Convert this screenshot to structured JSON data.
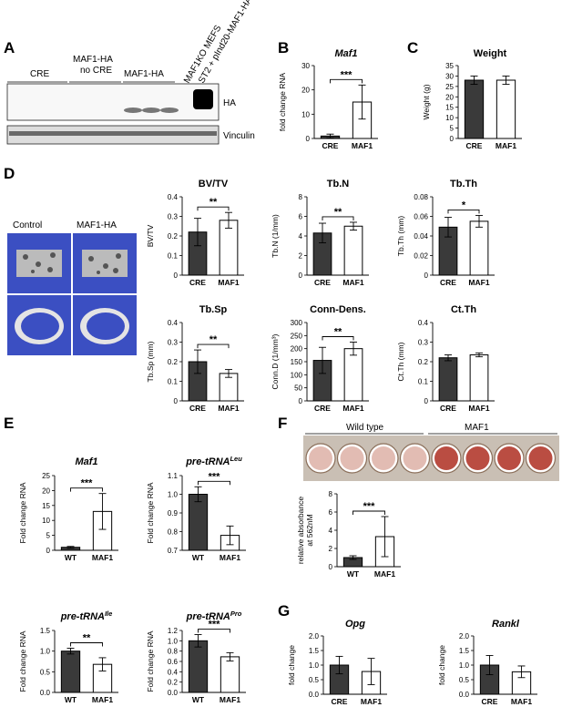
{
  "panels": {
    "A": {
      "letter": "A",
      "groups": [
        "CRE",
        "MAF1-HA\nno CRE",
        "MAF1-HA"
      ],
      "extra_lanes": [
        "MAF1KO MEFS",
        "ST2 + pInd20-MAF1-HA"
      ],
      "bands": [
        "HA",
        "Vinculin"
      ]
    },
    "B": {
      "letter": "B"
    },
    "C": {
      "letter": "C"
    },
    "D": {
      "letter": "D",
      "image_labels": [
        "Control",
        "MAF1-HA"
      ]
    },
    "E": {
      "letter": "E"
    },
    "F": {
      "letter": "F",
      "plate_groups": [
        "Wild type",
        "MAF1"
      ]
    },
    "G": {
      "letter": "G"
    }
  },
  "chart_data": [
    {
      "id": "B",
      "type": "bar",
      "title": "Maf1",
      "title_italic": true,
      "ylabel": "fold change RNA",
      "categories": [
        "CRE",
        "MAF1"
      ],
      "values": [
        1,
        15
      ],
      "errors": [
        0.8,
        7
      ],
      "ylim": [
        0,
        30
      ],
      "yticks": [
        0,
        10,
        20,
        30
      ],
      "significance": "***",
      "dark_first": true
    },
    {
      "id": "C",
      "type": "bar",
      "title": "Weight",
      "ylabel": "Weight (g)",
      "categories": [
        "CRE",
        "MAF1"
      ],
      "values": [
        28,
        28
      ],
      "errors": [
        2,
        2
      ],
      "ylim": [
        0,
        35
      ],
      "yticks": [
        0,
        5,
        10,
        15,
        20,
        25,
        30,
        35
      ],
      "significance": "",
      "dark_first": true
    },
    {
      "id": "BVTV",
      "type": "bar",
      "title": "BV/TV",
      "ylabel": "BV/TV",
      "categories": [
        "CRE",
        "MAF1"
      ],
      "values": [
        0.22,
        0.28
      ],
      "errors": [
        0.07,
        0.04
      ],
      "ylim": [
        0,
        0.4
      ],
      "yticks": [
        0,
        0.1,
        0.2,
        0.3,
        0.4
      ],
      "ytick_labels": [
        "0",
        "0.1",
        "0.2",
        "0.3",
        "0.4"
      ],
      "significance": "**",
      "dark_first": true
    },
    {
      "id": "TbN",
      "type": "bar",
      "title": "Tb.N",
      "ylabel": "Tb.N (1/mm)",
      "categories": [
        "CRE",
        "MAF1"
      ],
      "values": [
        4.3,
        5.0
      ],
      "errors": [
        1.0,
        0.4
      ],
      "ylim": [
        0,
        8
      ],
      "yticks": [
        0,
        2,
        4,
        6,
        8
      ],
      "significance": "**",
      "dark_first": true
    },
    {
      "id": "TbTh",
      "type": "bar",
      "title": "Tb.Th",
      "ylabel": "Tb.Th (mm)",
      "categories": [
        "CRE",
        "MAF1"
      ],
      "values": [
        0.049,
        0.055
      ],
      "errors": [
        0.01,
        0.006
      ],
      "ylim": [
        0,
        0.08
      ],
      "yticks": [
        0,
        0.02,
        0.04,
        0.06,
        0.08
      ],
      "ytick_labels": [
        "0",
        "0.02",
        "0.04",
        "0.06",
        "0.08"
      ],
      "significance": "*",
      "dark_first": true
    },
    {
      "id": "TbSp",
      "type": "bar",
      "title": "Tb.Sp",
      "ylabel": "Tb.Sp (mm)",
      "categories": [
        "CRE",
        "MAF1"
      ],
      "values": [
        0.2,
        0.14
      ],
      "errors": [
        0.06,
        0.02
      ],
      "ylim": [
        0,
        0.4
      ],
      "yticks": [
        0,
        0.1,
        0.2,
        0.3,
        0.4
      ],
      "ytick_labels": [
        "0",
        "0.1",
        "0.2",
        "0.3",
        "0.4"
      ],
      "significance": "**",
      "dark_first": true
    },
    {
      "id": "ConnD",
      "type": "bar",
      "title": "Conn-Dens.",
      "ylabel": "Conn.D (1/mm³)",
      "categories": [
        "CRE",
        "MAF1"
      ],
      "values": [
        155,
        200
      ],
      "errors": [
        50,
        25
      ],
      "ylim": [
        0,
        300
      ],
      "yticks": [
        0,
        50,
        100,
        150,
        200,
        250,
        300
      ],
      "significance": "**",
      "dark_first": true
    },
    {
      "id": "CtTh",
      "type": "bar",
      "title": "Ct.Th",
      "ylabel": "Ct.Th (mm)",
      "categories": [
        "CRE",
        "MAF1"
      ],
      "values": [
        0.22,
        0.235
      ],
      "errors": [
        0.015,
        0.01
      ],
      "ylim": [
        0,
        0.4
      ],
      "yticks": [
        0,
        0.1,
        0.2,
        0.3,
        0.4
      ],
      "ytick_labels": [
        "0",
        "0.1",
        "0.2",
        "0.3",
        "0.4"
      ],
      "significance": "",
      "dark_first": true
    },
    {
      "id": "E1",
      "type": "bar",
      "title": "Maf1",
      "title_italic": true,
      "ylabel": "Fold change RNA",
      "categories": [
        "WT",
        "MAF1"
      ],
      "values": [
        1,
        13
      ],
      "errors": [
        0.3,
        6
      ],
      "ylim": [
        0,
        25
      ],
      "yticks": [
        0,
        5,
        10,
        15,
        20,
        25
      ],
      "significance": "***",
      "dark_first": true
    },
    {
      "id": "E2",
      "type": "bar",
      "title": "pre-tRNA",
      "title_sup": "Leu",
      "title_italic": true,
      "ylabel": "Fold change RNA",
      "categories": [
        "WT",
        "MAF1"
      ],
      "values": [
        1.0,
        0.78
      ],
      "errors": [
        0.04,
        0.05
      ],
      "ylim": [
        0.7,
        1.1
      ],
      "yticks": [
        0.7,
        0.8,
        0.9,
        1.0,
        1.1
      ],
      "ytick_labels": [
        "0.7",
        "0.8",
        "0.9",
        "1.0",
        "1.1"
      ],
      "significance": "***",
      "dark_first": true
    },
    {
      "id": "E3",
      "type": "bar",
      "title": "pre-tRNA",
      "title_sup": "Ile",
      "title_italic": true,
      "ylabel": "Fold change RNA",
      "categories": [
        "WT",
        "MAF1"
      ],
      "values": [
        1.0,
        0.68
      ],
      "errors": [
        0.07,
        0.16
      ],
      "ylim": [
        0,
        1.5
      ],
      "yticks": [
        0,
        0.5,
        1.0,
        1.5
      ],
      "ytick_labels": [
        "0.0",
        "0.5",
        "1.0",
        "1.5"
      ],
      "significance": "**",
      "dark_first": true
    },
    {
      "id": "E4",
      "type": "bar",
      "title": "pre-tRNA",
      "title_sup": "Pro",
      "title_italic": true,
      "ylabel": "Fold change RNA",
      "categories": [
        "WT",
        "MAF1"
      ],
      "values": [
        1.0,
        0.69
      ],
      "errors": [
        0.12,
        0.08
      ],
      "ylim": [
        0,
        1.2
      ],
      "yticks": [
        0,
        0.2,
        0.4,
        0.6,
        0.8,
        1.0,
        1.2
      ],
      "ytick_labels": [
        "0.0",
        "0.2",
        "0.4",
        "0.6",
        "0.8",
        "1.0",
        "1.2"
      ],
      "significance": "***",
      "dark_first": true
    },
    {
      "id": "F",
      "type": "bar",
      "title": "",
      "ylabel": "relative absorbance\nat 562nM",
      "categories": [
        "WT",
        "MAF1"
      ],
      "values": [
        1,
        3.3
      ],
      "errors": [
        0.2,
        2.2
      ],
      "ylim": [
        0,
        8
      ],
      "yticks": [
        0,
        2,
        4,
        6,
        8
      ],
      "significance": "***",
      "dark_first": true
    },
    {
      "id": "G1",
      "type": "bar",
      "title": "Opg",
      "title_italic": true,
      "ylabel": "fold change",
      "categories": [
        "CRE",
        "MAF1"
      ],
      "values": [
        1.0,
        0.78
      ],
      "errors": [
        0.3,
        0.45
      ],
      "ylim": [
        0,
        2.0
      ],
      "yticks": [
        0,
        0.5,
        1.0,
        1.5,
        2.0
      ],
      "ytick_labels": [
        "0.0",
        "0.5",
        "1.0",
        "1.5",
        "2.0"
      ],
      "significance": "",
      "dark_first": true
    },
    {
      "id": "G2",
      "type": "bar",
      "title": "Rankl",
      "title_italic": true,
      "ylabel": "fold change",
      "categories": [
        "CRE",
        "MAF1"
      ],
      "values": [
        1.0,
        0.77
      ],
      "errors": [
        0.33,
        0.2
      ],
      "ylim": [
        0,
        2.0
      ],
      "yticks": [
        0,
        0.5,
        1.0,
        1.5,
        2.0
      ],
      "ytick_labels": [
        "0.0",
        "0.5",
        "1.0",
        "1.5",
        "2.0"
      ],
      "significance": "",
      "dark_first": true
    }
  ]
}
